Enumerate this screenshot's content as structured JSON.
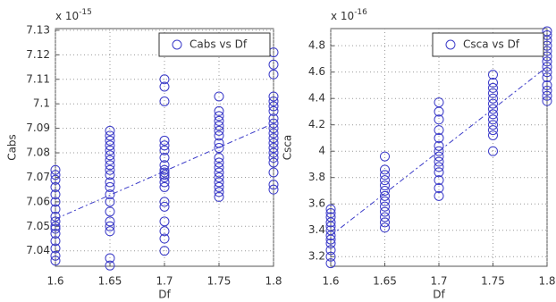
{
  "chart_data": [
    {
      "type": "scatter",
      "multiplier": {
        "base": "x 10",
        "exponent": "-15"
      },
      "xlabel": "Df",
      "ylabel": "Cabs",
      "xlim": [
        1.6,
        1.8
      ],
      "xticks": [
        1.6,
        1.65,
        1.7,
        1.75,
        1.8
      ],
      "ylim": [
        7.0337,
        7.1307
      ],
      "yticks": [
        7.04,
        7.05,
        7.06,
        7.07,
        7.08,
        7.09,
        7.1,
        7.11,
        7.12,
        7.13
      ],
      "grid": true,
      "legend": "upper right",
      "series": [
        {
          "name": "Cabs vs Df",
          "color": "#3a3ac8",
          "x": [
            1.6,
            1.6,
            1.6,
            1.6,
            1.6,
            1.6,
            1.6,
            1.6,
            1.6,
            1.6,
            1.6,
            1.6,
            1.6,
            1.6,
            1.6,
            1.6,
            1.65,
            1.65,
            1.65,
            1.65,
            1.65,
            1.65,
            1.65,
            1.65,
            1.65,
            1.65,
            1.65,
            1.65,
            1.65,
            1.65,
            1.65,
            1.65,
            1.65,
            1.65,
            1.65,
            1.65,
            1.7,
            1.7,
            1.7,
            1.7,
            1.7,
            1.7,
            1.7,
            1.7,
            1.7,
            1.7,
            1.7,
            1.7,
            1.7,
            1.7,
            1.7,
            1.7,
            1.7,
            1.7,
            1.7,
            1.7,
            1.75,
            1.75,
            1.75,
            1.75,
            1.75,
            1.75,
            1.75,
            1.75,
            1.75,
            1.75,
            1.75,
            1.75,
            1.75,
            1.75,
            1.75,
            1.75,
            1.75,
            1.75,
            1.8,
            1.8,
            1.8,
            1.8,
            1.8,
            1.8,
            1.8,
            1.8,
            1.8,
            1.8,
            1.8,
            1.8,
            1.8,
            1.8,
            1.8,
            1.8,
            1.8,
            1.8,
            1.8,
            1.8
          ],
          "values": [
            7.036,
            7.038,
            7.041,
            7.044,
            7.047,
            7.049,
            7.05,
            7.052,
            7.054,
            7.057,
            7.06,
            7.063,
            7.066,
            7.069,
            7.071,
            7.073,
            7.034,
            7.037,
            7.048,
            7.05,
            7.052,
            7.056,
            7.06,
            7.063,
            7.066,
            7.068,
            7.071,
            7.073,
            7.075,
            7.077,
            7.079,
            7.081,
            7.083,
            7.085,
            7.087,
            7.089,
            7.04,
            7.045,
            7.048,
            7.052,
            7.058,
            7.06,
            7.066,
            7.068,
            7.07,
            7.071,
            7.072,
            7.073,
            7.075,
            7.078,
            7.081,
            7.083,
            7.085,
            7.101,
            7.107,
            7.11,
            7.062,
            7.064,
            7.066,
            7.068,
            7.07,
            7.072,
            7.074,
            7.076,
            7.078,
            7.082,
            7.084,
            7.087,
            7.089,
            7.091,
            7.093,
            7.095,
            7.097,
            7.103,
            7.065,
            7.067,
            7.072,
            7.076,
            7.078,
            7.08,
            7.082,
            7.084,
            7.086,
            7.088,
            7.09,
            7.092,
            7.094,
            7.097,
            7.099,
            7.101,
            7.103,
            7.112,
            7.116,
            7.121
          ]
        }
      ],
      "fit": {
        "color": "#3a3ac8",
        "x": [
          1.6,
          1.8
        ],
        "values": [
          7.053,
          7.092
        ]
      }
    },
    {
      "type": "scatter",
      "multiplier": {
        "base": "x 10",
        "exponent": "-16"
      },
      "xlabel": "Df",
      "ylabel": "Csca",
      "xlim": [
        1.6,
        1.8
      ],
      "xticks": [
        1.6,
        1.65,
        1.7,
        1.75,
        1.8
      ],
      "ylim": [
        3.127,
        4.93
      ],
      "yticks": [
        3.2,
        3.4,
        3.6,
        3.8,
        4,
        4.2,
        4.4,
        4.6,
        4.8
      ],
      "grid": true,
      "legend": "upper right",
      "series": [
        {
          "name": "Csca vs Df",
          "color": "#3a3ac8",
          "x": [
            1.6,
            1.6,
            1.6,
            1.6,
            1.6,
            1.6,
            1.6,
            1.6,
            1.6,
            1.6,
            1.6,
            1.6,
            1.65,
            1.65,
            1.65,
            1.65,
            1.65,
            1.65,
            1.65,
            1.65,
            1.65,
            1.65,
            1.65,
            1.65,
            1.65,
            1.7,
            1.7,
            1.7,
            1.7,
            1.7,
            1.7,
            1.7,
            1.7,
            1.7,
            1.7,
            1.7,
            1.7,
            1.7,
            1.7,
            1.75,
            1.75,
            1.75,
            1.75,
            1.75,
            1.75,
            1.75,
            1.75,
            1.75,
            1.75,
            1.75,
            1.75,
            1.75,
            1.8,
            1.8,
            1.8,
            1.8,
            1.8,
            1.8,
            1.8,
            1.8,
            1.8,
            1.8,
            1.8,
            1.8,
            1.8,
            1.8
          ],
          "values": [
            3.15,
            3.2,
            3.25,
            3.3,
            3.33,
            3.36,
            3.4,
            3.43,
            3.46,
            3.5,
            3.53,
            3.56,
            3.42,
            3.46,
            3.5,
            3.54,
            3.58,
            3.62,
            3.66,
            3.7,
            3.74,
            3.78,
            3.82,
            3.86,
            3.96,
            3.66,
            3.72,
            3.78,
            3.84,
            3.88,
            3.92,
            3.96,
            4.0,
            4.04,
            4.1,
            4.16,
            4.24,
            4.3,
            4.37,
            4.0,
            4.12,
            4.16,
            4.2,
            4.24,
            4.28,
            4.32,
            4.36,
            4.4,
            4.44,
            4.48,
            4.52,
            4.58,
            4.38,
            4.42,
            4.46,
            4.5,
            4.56,
            4.6,
            4.64,
            4.68,
            4.72,
            4.76,
            4.8,
            4.84,
            4.88,
            4.91
          ]
        }
      ],
      "fit": {
        "color": "#3a3ac8",
        "x": [
          1.6,
          1.8
        ],
        "values": [
          3.36,
          4.64
        ]
      }
    }
  ]
}
